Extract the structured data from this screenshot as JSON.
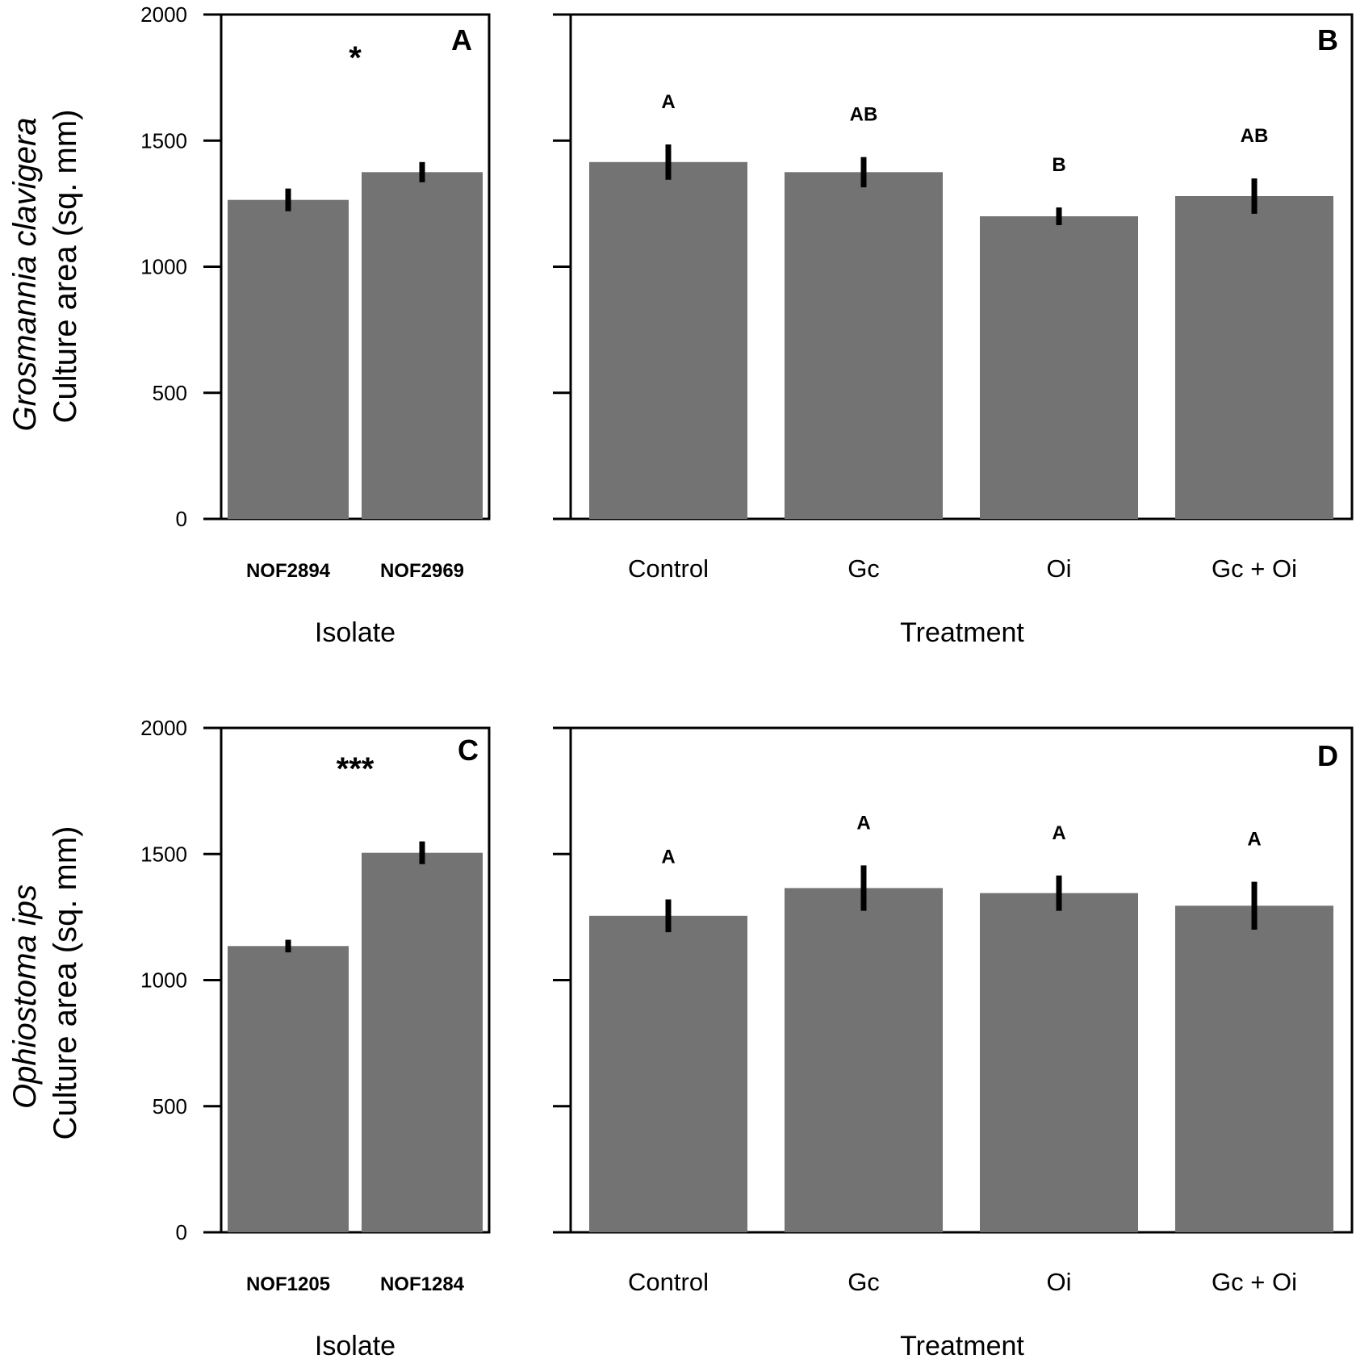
{
  "chart_data": [
    {
      "panel": "A",
      "type": "bar",
      "xlabel": "Isolate",
      "ylabel_species": "Grosmannia clavigera",
      "ylabel": "Culture area (sq. mm)",
      "ylim": [
        0,
        2000
      ],
      "yticks": [
        "0",
        "500",
        "1000",
        "1500",
        "2000"
      ],
      "categories": [
        "NOF2894",
        "NOF2969"
      ],
      "values": [
        1265,
        1375
      ],
      "errors": [
        45,
        40
      ],
      "significance": "*",
      "color": "#737373"
    },
    {
      "panel": "B",
      "type": "bar",
      "xlabel": "Treatment",
      "ylim": [
        0,
        2000
      ],
      "categories": [
        "Control",
        "Gc",
        "Oi",
        "Gc + Oi"
      ],
      "values": [
        1415,
        1375,
        1200,
        1280
      ],
      "errors": [
        70,
        60,
        35,
        70
      ],
      "letters": [
        "A",
        "AB",
        "B",
        "AB"
      ],
      "color": "#737373"
    },
    {
      "panel": "C",
      "type": "bar",
      "xlabel": "Isolate",
      "ylabel_species": "Ophiostoma ips",
      "ylabel": "Culture area (sq. mm)",
      "ylim": [
        0,
        2000
      ],
      "yticks": [
        "0",
        "500",
        "1000",
        "1500",
        "2000"
      ],
      "categories": [
        "NOF1205",
        "NOF1284"
      ],
      "values": [
        1135,
        1505
      ],
      "errors": [
        25,
        45
      ],
      "significance": "***",
      "color": "#737373"
    },
    {
      "panel": "D",
      "type": "bar",
      "xlabel": "Treatment",
      "ylim": [
        0,
        2000
      ],
      "categories": [
        "Control",
        "Gc",
        "Oi",
        "Gc + Oi"
      ],
      "values": [
        1255,
        1365,
        1345,
        1295
      ],
      "errors": [
        65,
        90,
        70,
        95
      ],
      "letters": [
        "A",
        "A",
        "A",
        "A"
      ],
      "color": "#737373"
    }
  ]
}
